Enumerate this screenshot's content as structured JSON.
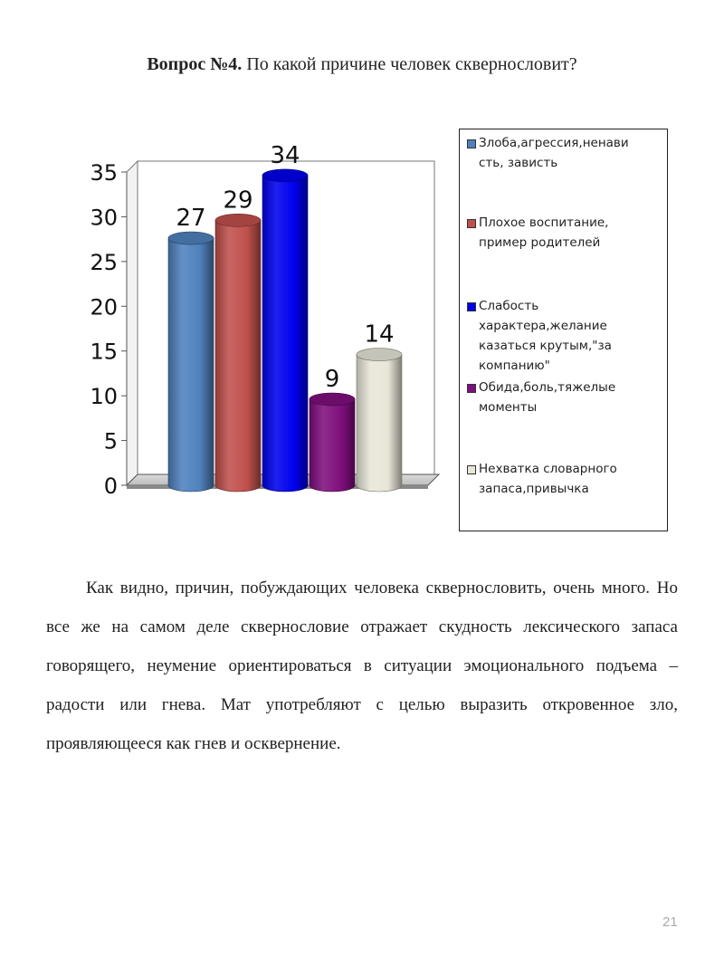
{
  "heading": {
    "bold": "Вопрос №4.",
    "rest": " По какой причине человек сквернословит?"
  },
  "chart_data": {
    "type": "bar",
    "style": "3d-cylinder",
    "categories": [
      "Злоба,агрессия,ненависть, зависть",
      "Плохое воспитание, пример родителей",
      "Слабость характера,желание казаться крутым,\"за компанию\"",
      "Обида,боль,тяжелые моменты",
      "Нехватка словарного запаса,привычка"
    ],
    "values": [
      27,
      29,
      34,
      9,
      14
    ],
    "colors": [
      "#4f81bd",
      "#c0504d",
      "#0000ee",
      "#7f0f7e",
      "#e8e6d8"
    ],
    "yticks": [
      "0",
      "5",
      "10",
      "15",
      "20",
      "25",
      "30",
      "35"
    ],
    "ylim": [
      0,
      35
    ],
    "grid": false,
    "legend_position": "right"
  },
  "legend": [
    {
      "text": "Злоба,агрессия,ненави сть, зависть"
    },
    {
      "text": "Плохое воспитание, пример родителей"
    },
    {
      "text": "Слабость характера,желание казаться крутым,\"за компанию\""
    },
    {
      "text": "Обида,боль,тяжелые моменты"
    },
    {
      "text": "Нехватка словарного запаса,привычка"
    }
  ],
  "body_text": "Как видно, причин, побуждающих человека сквернословить, очень много. Но все же на самом деле сквернословие отражает скудность лексического запаса говорящего, неумение ориентироваться в ситуации эмоционального подъема – радости или гнева. Мат употребляют с целью выразить откровенное зло, проявляющееся как гнев и осквернение.",
  "page_number": "21"
}
